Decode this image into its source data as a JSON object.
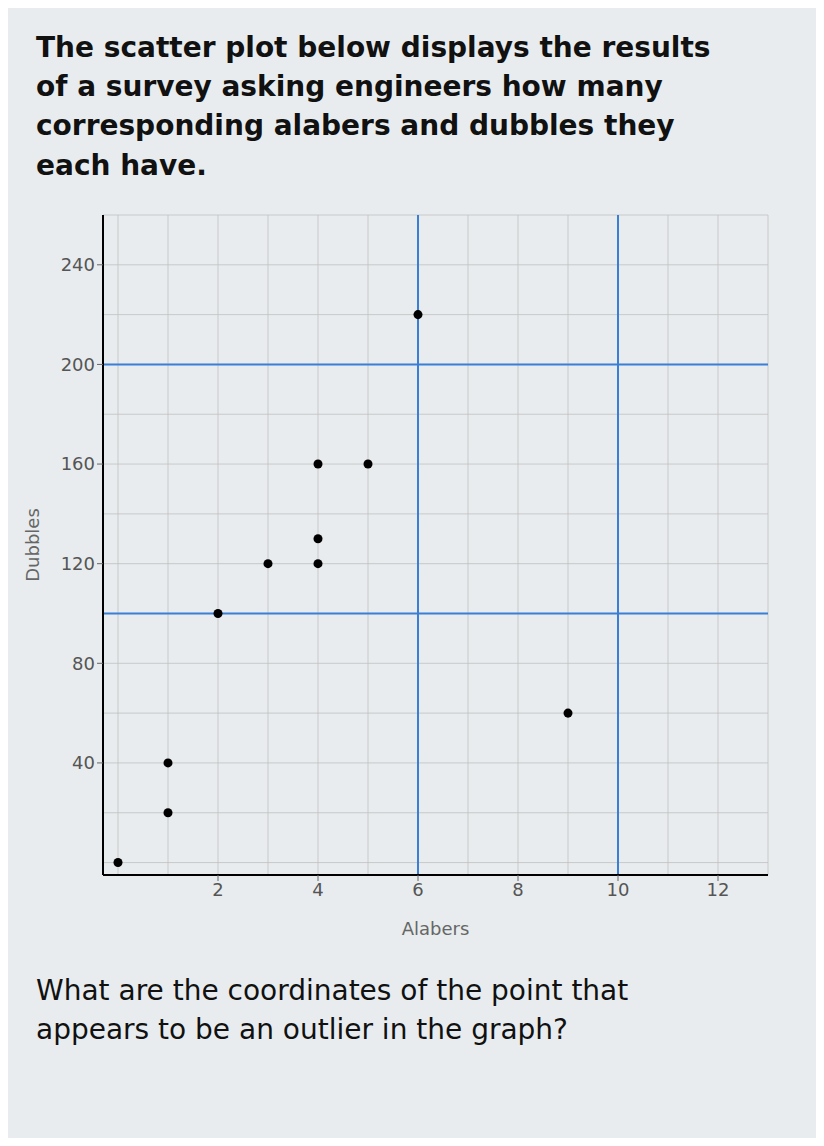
{
  "chart_data": {
    "type": "scatter",
    "title": "The scatter plot below displays the results\nof a survey asking engineers how many\ncorresponding alabers and dubbles they\neach have.",
    "annotations": [
      "What are the coordinates of the point that\nappears to be an outlier in the graph?"
    ],
    "x_label": "Alabers",
    "y_label": "Dubbles",
    "x": [
      0,
      1,
      1,
      2,
      3,
      4,
      4,
      4,
      5,
      6,
      9
    ],
    "values": [
      0,
      20,
      40,
      100,
      120,
      120,
      130,
      160,
      160,
      220,
      60
    ],
    "color": "#000000",
    "xlim": [
      -0.3,
      13
    ],
    "ylim": [
      -5,
      260
    ],
    "xticks": [
      2,
      4,
      6,
      8,
      10,
      12
    ],
    "yticks": [
      40,
      80,
      120,
      160,
      200,
      240
    ],
    "grid": true,
    "reference_lines": {
      "x": [
        6,
        10
      ],
      "y": [
        100,
        200
      ],
      "color": "#3a7fd5"
    }
  }
}
